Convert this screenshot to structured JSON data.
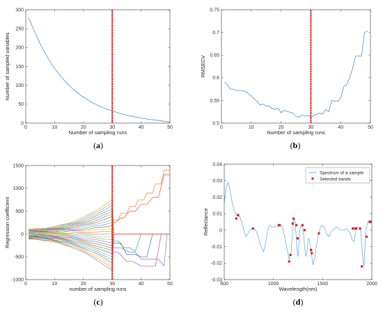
{
  "chart_data": [
    {
      "id": "a",
      "type": "line",
      "caption": "a",
      "xlabel": "Number of sampling runs",
      "ylabel": "Number of sampled variables",
      "xlim": [
        0,
        50
      ],
      "ylim": [
        0,
        300
      ],
      "xticks": [
        0,
        10,
        20,
        30,
        40,
        50
      ],
      "yticks": [
        0,
        50,
        100,
        150,
        200,
        250,
        300
      ],
      "series": [
        {
          "color": "#4a90c8",
          "x": [
            1,
            2,
            3,
            4,
            5,
            6,
            7,
            8,
            9,
            10,
            11,
            12,
            13,
            14,
            15,
            16,
            17,
            18,
            19,
            20,
            21,
            22,
            23,
            24,
            25,
            26,
            27,
            28,
            29,
            30,
            31,
            32,
            33,
            34,
            35,
            36,
            37,
            38,
            39,
            40,
            41,
            42,
            43,
            44,
            45,
            46,
            47,
            48,
            49,
            50
          ],
          "y": [
            280,
            261,
            243,
            226,
            210,
            195,
            181,
            168,
            156,
            145,
            135,
            125,
            116,
            108,
            100,
            93,
            86,
            80,
            74,
            69,
            64,
            59,
            55,
            51,
            47,
            44,
            40,
            37,
            35,
            32,
            30,
            27,
            25,
            23,
            21,
            19,
            18,
            16,
            15,
            13,
            12,
            11,
            10,
            9,
            8,
            7,
            6,
            5,
            4,
            3
          ]
        }
      ],
      "marker_line": {
        "x": 30,
        "color": "#e02020"
      }
    },
    {
      "id": "b",
      "type": "line",
      "caption": "b",
      "xlabel": "Number of sampling runs",
      "ylabel": "RMSECV",
      "xlim": [
        0,
        50
      ],
      "ylim": [
        0.5,
        0.75
      ],
      "xticks": [
        0,
        10,
        20,
        30,
        40,
        50
      ],
      "yticks": [
        0.5,
        0.55,
        0.6,
        0.65,
        0.7,
        0.75
      ],
      "series": [
        {
          "color": "#4a90c8",
          "x": [
            1,
            2,
            3,
            4,
            5,
            6,
            7,
            8,
            9,
            10,
            11,
            12,
            13,
            14,
            15,
            16,
            17,
            18,
            19,
            20,
            21,
            22,
            23,
            24,
            25,
            26,
            27,
            28,
            29,
            30,
            31,
            32,
            33,
            34,
            35,
            36,
            37,
            38,
            39,
            40,
            41,
            42,
            43,
            44,
            45,
            46,
            47,
            48,
            49
          ],
          "y": [
            0.59,
            0.585,
            0.575,
            0.575,
            0.572,
            0.572,
            0.572,
            0.57,
            0.565,
            0.56,
            0.553,
            0.548,
            0.54,
            0.542,
            0.537,
            0.538,
            0.532,
            0.53,
            0.533,
            0.523,
            0.528,
            0.526,
            0.524,
            0.522,
            0.515,
            0.513,
            0.518,
            0.515,
            0.518,
            0.512,
            0.517,
            0.52,
            0.522,
            0.52,
            0.53,
            0.525,
            0.55,
            0.548,
            0.548,
            0.555,
            0.58,
            0.585,
            0.6,
            0.62,
            0.648,
            0.648,
            0.648,
            0.7,
            0.703
          ]
        }
      ],
      "marker_line": {
        "x": 30,
        "color": "#e02020"
      }
    },
    {
      "id": "c",
      "type": "line",
      "caption": "c",
      "xlabel": "number of sampling runs",
      "ylabel": "Regression coefficient",
      "xlim": [
        0,
        50
      ],
      "ylim": [
        -1000,
        1500
      ],
      "xticks": [
        0,
        10,
        20,
        30,
        40,
        50
      ],
      "yticks": [
        -1000,
        -500,
        0,
        500,
        1000,
        1500
      ],
      "fan": {
        "count": 26,
        "colors": [
          "#4a90c8",
          "#e67e22",
          "#f1c40f",
          "#8e44ad",
          "#27ae60",
          "#5dade2",
          "#c0392b",
          "#16a085",
          "#d35400",
          "#2e86c1",
          "#a569bd",
          "#52be80",
          "#f39c12"
        ]
      },
      "highlight_series": [
        {
          "color": "#e67e22",
          "x": [
            30,
            32,
            33,
            35,
            36,
            38,
            39,
            41,
            42,
            44,
            45,
            47,
            48,
            50
          ],
          "y": [
            300,
            300,
            450,
            450,
            600,
            600,
            750,
            750,
            900,
            900,
            1100,
            1100,
            1400,
            1400
          ]
        },
        {
          "color": "#e74c3c",
          "x": [
            30,
            31,
            33,
            34,
            36,
            38,
            40,
            42,
            44,
            46,
            48,
            50
          ],
          "y": [
            250,
            250,
            350,
            350,
            500,
            500,
            650,
            650,
            800,
            800,
            1300,
            1300
          ]
        },
        {
          "color": "#a569bd",
          "x": [
            30,
            33,
            36,
            38,
            40,
            42,
            44,
            46,
            48,
            49
          ],
          "y": [
            -300,
            -300,
            -400,
            -400,
            -550,
            -550,
            -550,
            -550,
            -700,
            0
          ]
        },
        {
          "color": "#9b59b6",
          "x": [
            30,
            32,
            35,
            37,
            40,
            43,
            45,
            47
          ],
          "y": [
            -400,
            -400,
            -600,
            -600,
            -700,
            -700,
            -700,
            0
          ]
        },
        {
          "color": "#2471a3",
          "x": [
            30,
            33,
            35,
            38,
            40,
            42,
            44
          ],
          "y": [
            -200,
            -200,
            -450,
            -450,
            -500,
            -500,
            0
          ]
        },
        {
          "color": "#27ae60",
          "x": [
            30,
            32,
            34,
            36,
            38,
            40
          ],
          "y": [
            -150,
            -150,
            -300,
            -300,
            -380,
            0
          ]
        }
      ],
      "marker_line": {
        "x": 30,
        "color": "#e02020"
      }
    },
    {
      "id": "d",
      "type": "line",
      "caption": "d",
      "xlabel": "Wavelength(nm)",
      "ylabel": "Reflectance",
      "xlim": [
        500,
        2000
      ],
      "ylim": [
        -0.03,
        0.04
      ],
      "xticks": [
        500,
        1000,
        1500,
        2000
      ],
      "yticks": [
        -0.03,
        -0.02,
        -0.01,
        0,
        0.01,
        0.02,
        0.03,
        0.04
      ],
      "legend": {
        "position": "top-right",
        "entries": [
          "Spectrum of a sample",
          "Selected bands"
        ]
      },
      "series": [
        {
          "name": "Spectrum of a sample",
          "color": "#6ab0d8",
          "x": [
            500,
            520,
            540,
            560,
            580,
            600,
            620,
            640,
            660,
            680,
            700,
            720,
            740,
            760,
            780,
            800,
            820,
            840,
            860,
            880,
            900,
            920,
            940,
            960,
            980,
            1000,
            1020,
            1040,
            1060,
            1080,
            1100,
            1120,
            1140,
            1160,
            1170,
            1180,
            1190,
            1200,
            1210,
            1220,
            1230,
            1240,
            1250,
            1260,
            1270,
            1280,
            1290,
            1300,
            1310,
            1320,
            1330,
            1340,
            1350,
            1360,
            1370,
            1380,
            1390,
            1400,
            1420,
            1440,
            1460,
            1480,
            1500,
            1520,
            1540,
            1560,
            1580,
            1600,
            1620,
            1640,
            1660,
            1680,
            1700,
            1720,
            1740,
            1760,
            1780,
            1800,
            1820,
            1840,
            1860,
            1880,
            1890,
            1900,
            1910,
            1920,
            1940,
            1960,
            1980,
            2000
          ],
          "y": [
            0.015,
            0.026,
            0.029,
            0.024,
            0.017,
            0.012,
            0.009,
            0.01,
            0.008,
            0.004,
            0.0,
            -0.004,
            -0.002,
            0.0,
            0.001,
            0.001,
            0.0,
            -0.003,
            -0.007,
            -0.011,
            -0.013,
            -0.008,
            0.0,
            0.003,
            0.002,
            0.002,
            0.002,
            0.002,
            0.003,
            0.003,
            0.0,
            -0.006,
            -0.012,
            -0.018,
            -0.016,
            -0.013,
            -0.005,
            0.003,
            0.007,
            0.005,
            -0.003,
            -0.012,
            -0.016,
            -0.007,
            0.001,
            0.003,
            0.002,
            0.0,
            -0.005,
            -0.012,
            -0.016,
            -0.013,
            -0.007,
            -0.005,
            -0.008,
            -0.011,
            -0.016,
            -0.021,
            -0.017,
            -0.008,
            -0.002,
            0.002,
            0.003,
            0.001,
            -0.002,
            -0.004,
            -0.002,
            0.0,
            0.001,
            0.002,
            0.001,
            0.0,
            0.0,
            0.0,
            0.001,
            0.0,
            -0.002,
            -0.006,
            -0.007,
            0.001,
            0.002,
            0.001,
            -0.003,
            -0.012,
            -0.018,
            -0.022,
            0.0,
            0.005,
            0.006,
            0.005
          ]
        }
      ],
      "selected_bands": {
        "name": "Selected bands",
        "color": "#e02020",
        "x": [
          622,
          640,
          792,
          1055,
          1062,
          1160,
          1173,
          1196,
          1205,
          1234,
          1246,
          1296,
          1317,
          1382,
          1390,
          1462,
          1806,
          1832,
          1840,
          1880,
          1898,
          1946,
          1978,
          1996
        ],
        "y": [
          0.007,
          0.009,
          0.001,
          0.003,
          0.003,
          -0.019,
          -0.015,
          0.004,
          0.007,
          0.003,
          -0.005,
          0.003,
          0.0,
          -0.012,
          -0.014,
          -0.002,
          0.001,
          0.001,
          0.001,
          0.001,
          -0.022,
          -0.004,
          0.005,
          0.005
        ]
      },
      "marker_line": null
    }
  ],
  "captions": {
    "a": "a",
    "b": "b",
    "c": "c",
    "d": "d"
  }
}
